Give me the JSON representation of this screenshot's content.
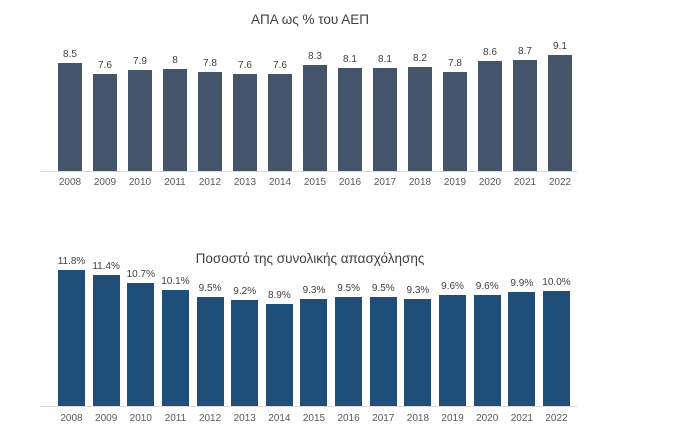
{
  "colors": {
    "background": "#ffffff",
    "top_chart_bar": "#44546A",
    "bottom_chart_bar": "#1F4E79",
    "axis_line": "#D9D9D9",
    "value_label_text": "#404040",
    "tick_text": "#595959",
    "title_text": "#404040"
  },
  "chart_data": [
    {
      "type": "bar",
      "title": "ΑΠΑ ως % του ΑΕΠ",
      "categories": [
        "2008",
        "2009",
        "2010",
        "2011",
        "2012",
        "2013",
        "2014",
        "2015",
        "2016",
        "2017",
        "2018",
        "2019",
        "2020",
        "2021",
        "2022"
      ],
      "values": [
        8.5,
        7.6,
        7.9,
        8,
        7.8,
        7.6,
        7.6,
        8.3,
        8.1,
        8.1,
        8.2,
        7.8,
        8.6,
        8.7,
        9.1
      ],
      "labels": [
        "8.5",
        "7.6",
        "7.9",
        "8",
        "7.8",
        "7.6",
        "7.6",
        "8.3",
        "8.1",
        "8.1",
        "8.2",
        "7.8",
        "8.6",
        "8.7",
        "9.1"
      ],
      "bar_color": "#44546A",
      "xlabel": "",
      "ylabel": "",
      "ylim": [
        0,
        9.5
      ],
      "grid": false,
      "legend": "none",
      "data_labels": "above-bars"
    },
    {
      "type": "bar",
      "title": "Ποσοστό της συνολικής απασχόλησης",
      "categories": [
        "2008",
        "2009",
        "2010",
        "2011",
        "2012",
        "2013",
        "2014",
        "2015",
        "2016",
        "2017",
        "2018",
        "2019",
        "2020",
        "2021",
        "2022"
      ],
      "values": [
        11.8,
        11.4,
        10.7,
        10.1,
        9.5,
        9.2,
        8.9,
        9.3,
        9.5,
        9.5,
        9.3,
        9.6,
        9.6,
        9.9,
        10.0
      ],
      "labels": [
        "11.8%",
        "11.4%",
        "10.7%",
        "10.1%",
        "9.5%",
        "9.2%",
        "8.9%",
        "9.3%",
        "9.5%",
        "9.5%",
        "9.3%",
        "9.6%",
        "9.6%",
        "9.9%",
        "10.0%"
      ],
      "bar_color": "#1F4E79",
      "xlabel": "",
      "ylabel": "",
      "ylim": [
        0,
        11.9
      ],
      "grid": false,
      "legend": "none",
      "data_labels": "above-bars"
    }
  ]
}
